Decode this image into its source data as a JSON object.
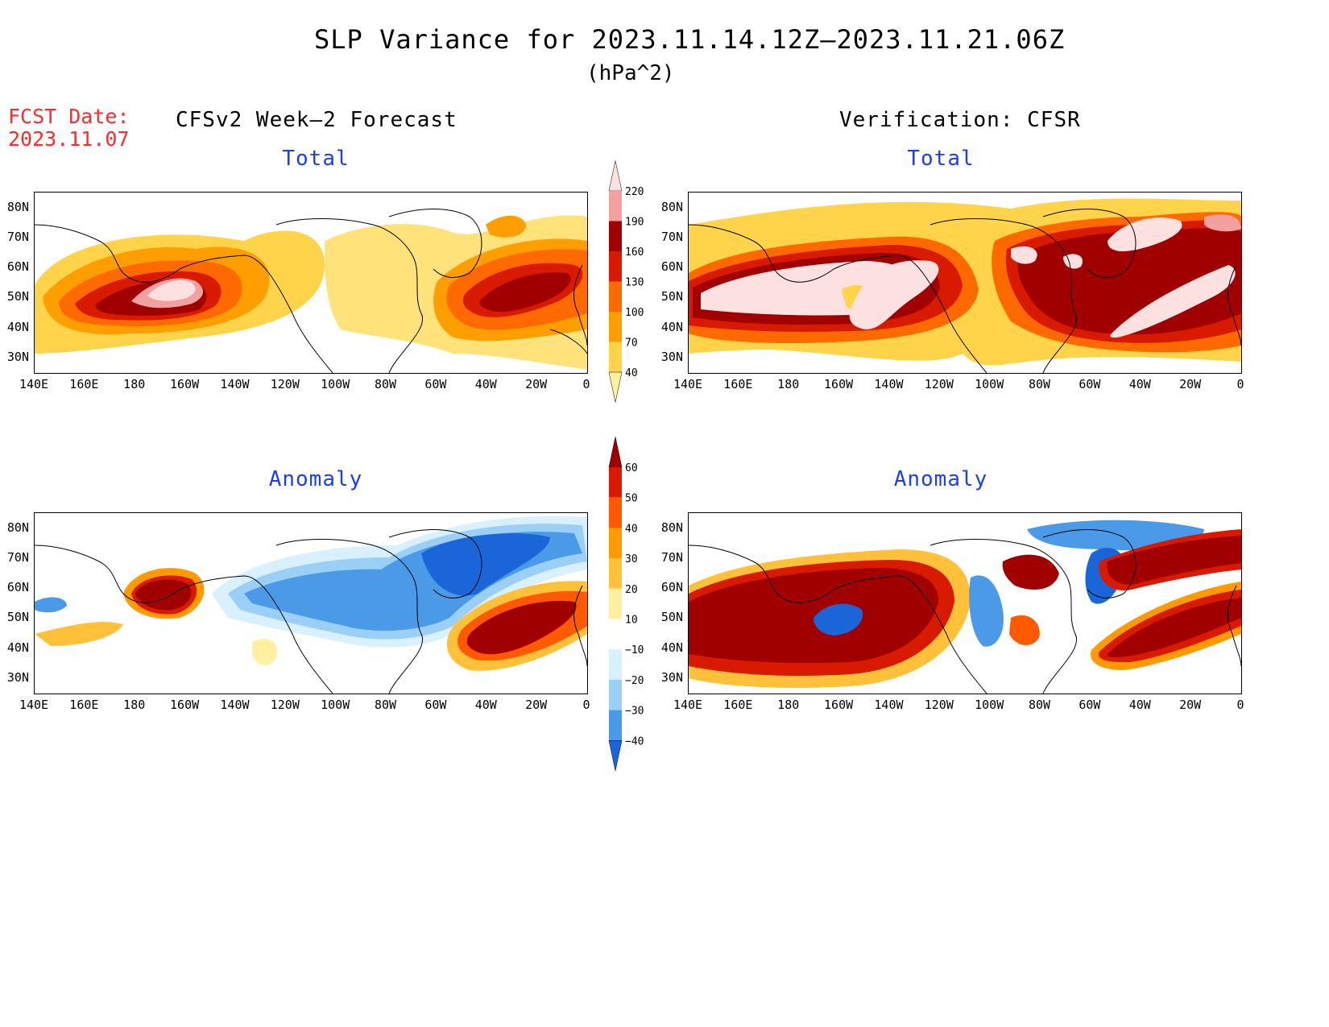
{
  "header": {
    "title": "SLP Variance for 2023.11.14.12Z–2023.11.21.06Z",
    "units": "(hPa^2)"
  },
  "forecast_date": {
    "label": "FCST Date:",
    "value": "2023.11.07"
  },
  "columns": {
    "left_title": "CFSv2 Week–2 Forecast",
    "right_title": "Verification: CFSR"
  },
  "panels": {
    "total_left": "Total",
    "total_right": "Total",
    "anomaly_left": "Anomaly",
    "anomaly_right": "Anomaly"
  },
  "axes": {
    "lat_labels": [
      "80N",
      "70N",
      "60N",
      "50N",
      "40N",
      "30N"
    ],
    "lon_labels": [
      "140E",
      "160E",
      "180",
      "160W",
      "140W",
      "120W",
      "100W",
      "80W",
      "60W",
      "40W",
      "20W",
      "0"
    ]
  },
  "colorbars": {
    "total": {
      "levels": [
        "220",
        "190",
        "160",
        "130",
        "100",
        "70",
        "40"
      ],
      "colors": [
        "#fde0e0",
        "#f2a0a0",
        "#a00000",
        "#d81a00",
        "#ff6a00",
        "#ff9e00",
        "#ffd34a",
        "#fff0a0"
      ]
    },
    "anomaly": {
      "levels": [
        "60",
        "50",
        "40",
        "30",
        "20",
        "10",
        "−10",
        "−20",
        "−30",
        "−40"
      ],
      "colors": [
        "#a00000",
        "#d81a00",
        "#ff5a00",
        "#ff9a00",
        "#ffc03a",
        "#fff0a0",
        "#ffffff",
        "#d8f0ff",
        "#9ccff5",
        "#4a9ae8",
        "#1a66d8"
      ]
    }
  },
  "chart_data": {
    "type": "heatmap",
    "title": "SLP Variance for 2023.11.14.12Z–2023.11.21.06Z",
    "units": "hPa^2",
    "x_range": [
      "140E",
      "0"
    ],
    "y_range": [
      "25N",
      "85N"
    ],
    "panels": [
      "CFSv2 Week-2 Forecast Total",
      "Verification: CFSR Total",
      "CFSv2 Week-2 Forecast Anomaly",
      "Verification: CFSR Anomaly"
    ]
  }
}
